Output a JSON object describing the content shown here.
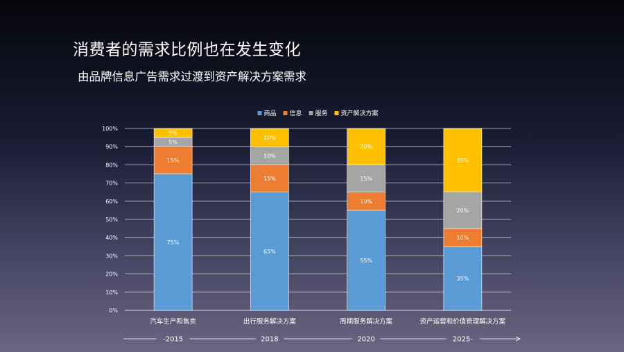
{
  "slide": {
    "title": "消费者的需求比例也在发生变化",
    "subtitle": "由品牌信息广告需求过渡到资产解决方案需求"
  },
  "chart_data": {
    "type": "bar",
    "stacked": true,
    "categories": [
      "汽车生产和售卖",
      "出行服务解决方案",
      "周期服务解决方案",
      "资产运营和价值管理解决方案"
    ],
    "series": [
      {
        "name": "商品",
        "color": "#5b9bd5",
        "values": [
          75,
          65,
          55,
          35
        ]
      },
      {
        "name": "信息",
        "color": "#ed7d31",
        "values": [
          15,
          15,
          10,
          10
        ]
      },
      {
        "name": "服务",
        "color": "#a5a5a5",
        "values": [
          5,
          10,
          15,
          20
        ]
      },
      {
        "name": "资产解决方案",
        "color": "#ffc000",
        "values": [
          5,
          10,
          20,
          35
        ]
      }
    ],
    "data_labels": [
      [
        "75%",
        "65%",
        "55%",
        "35%"
      ],
      [
        "15%",
        "15%",
        "10%",
        "10%"
      ],
      [
        "5%",
        "10%",
        "15%",
        "20%"
      ],
      [
        "5%",
        "10%",
        "20%",
        "35%"
      ]
    ],
    "ylim": [
      0,
      100
    ],
    "yticks": [
      "0%",
      "10%",
      "20%",
      "30%",
      "40%",
      "50%",
      "60%",
      "70%",
      "80%",
      "90%",
      "100%"
    ],
    "grid": true,
    "legend_position": "top",
    "timeline": [
      "-2015",
      "2018",
      "2020",
      "2025-"
    ]
  }
}
